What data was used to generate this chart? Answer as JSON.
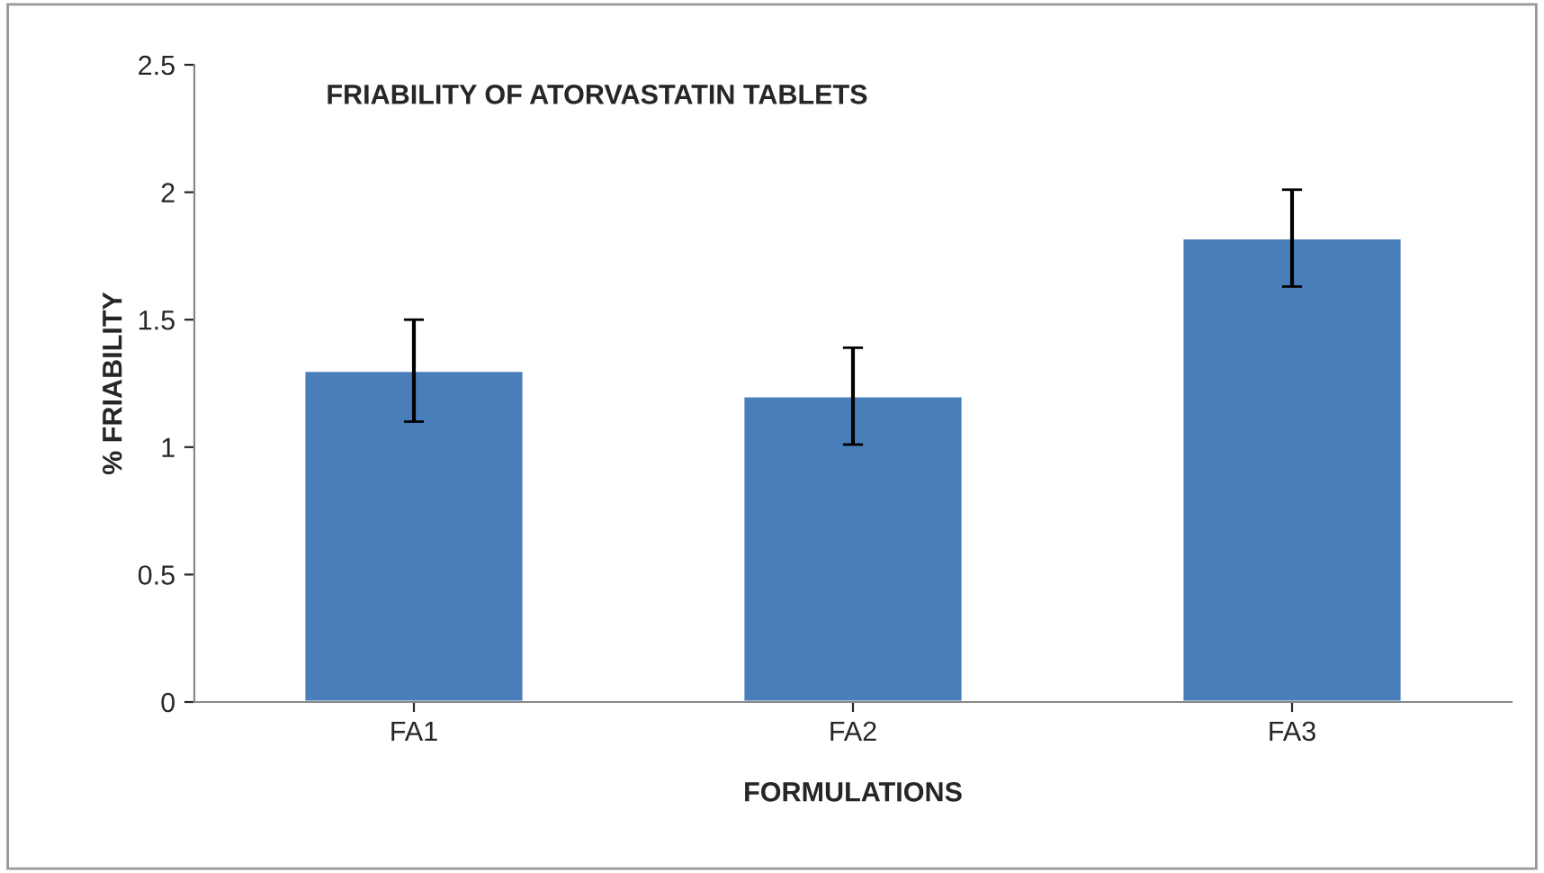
{
  "chart_data": {
    "type": "bar",
    "title": "FRIABILITY OF ATORVASTATIN TABLETS",
    "xlabel": "FORMULATIONS",
    "ylabel": "% FRIABILITY",
    "categories": [
      "FA1",
      "FA2",
      "FA3"
    ],
    "values": [
      1.3,
      1.2,
      1.82
    ],
    "errors": [
      0.2,
      0.19,
      0.19
    ],
    "color": "#4a7ebb",
    "ylim": [
      0,
      2.5
    ],
    "yticks": [
      0,
      0.5,
      1,
      1.5,
      2,
      2.5
    ],
    "grid": false,
    "legend": false
  }
}
